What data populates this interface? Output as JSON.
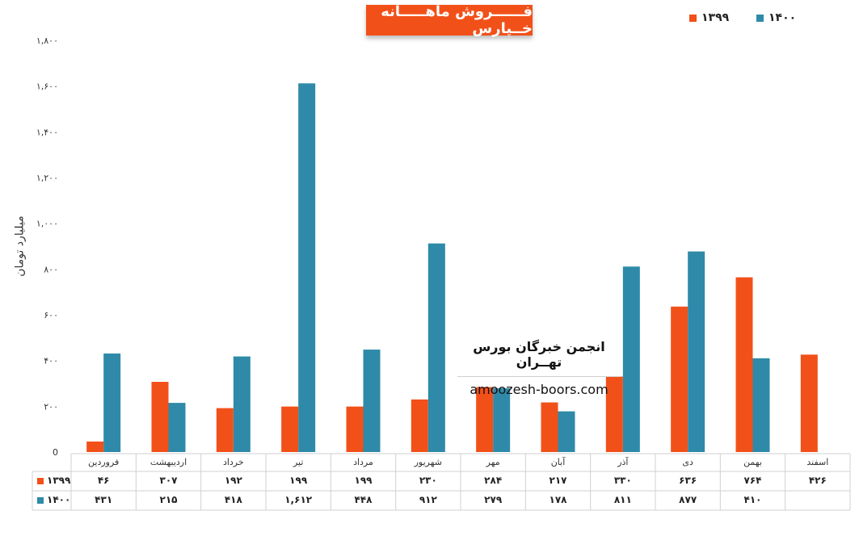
{
  "title": "فــــــروش ماهـــــانه خــپارس",
  "ylabel": "میلیارد تومان",
  "watermark": {
    "title": "انجمن خبرگان بورس تهــران",
    "url": "amoozesh-boors.com"
  },
  "colors": {
    "s1399": "#f25019",
    "s1400": "#2e8aa8"
  },
  "chart_data": {
    "type": "bar",
    "categories": [
      "فروردین",
      "اردیبهشت",
      "خرداد",
      "تیر",
      "مرداد",
      "شهریور",
      "مهر",
      "آبان",
      "آذر",
      "دی",
      "بهمن",
      "اسفند"
    ],
    "ylim": [
      0,
      1800
    ],
    "yticks": [
      0,
      200,
      400,
      600,
      800,
      1000,
      1200,
      1400,
      1600,
      1800
    ],
    "ytick_labels": [
      "0",
      "۲۰۰",
      "۴۰۰",
      "۶۰۰",
      "۸۰۰",
      "۱,۰۰۰",
      "۱,۲۰۰",
      "۱,۴۰۰",
      "۱,۶۰۰",
      "۱,۸۰۰"
    ],
    "legend_position": "top-right",
    "grid": false,
    "series": [
      {
        "name": "۱۳۹۹",
        "values": [
          46,
          307,
          192,
          199,
          199,
          230,
          284,
          217,
          330,
          636,
          764,
          426
        ],
        "labels": [
          "۴۶",
          "۳۰۷",
          "۱۹۲",
          "۱۹۹",
          "۱۹۹",
          "۲۳۰",
          "۲۸۴",
          "۲۱۷",
          "۳۳۰",
          "۶۳۶",
          "۷۶۴",
          "۴۲۶"
        ]
      },
      {
        "name": "۱۴۰۰",
        "values": [
          431,
          215,
          418,
          1612,
          448,
          912,
          279,
          178,
          811,
          877,
          410,
          null
        ],
        "labels": [
          "۴۳۱",
          "۲۱۵",
          "۴۱۸",
          "۱,۶۱۲",
          "۴۴۸",
          "۹۱۲",
          "۲۷۹",
          "۱۷۸",
          "۸۱۱",
          "۸۷۷",
          "۴۱۰",
          ""
        ]
      }
    ]
  }
}
